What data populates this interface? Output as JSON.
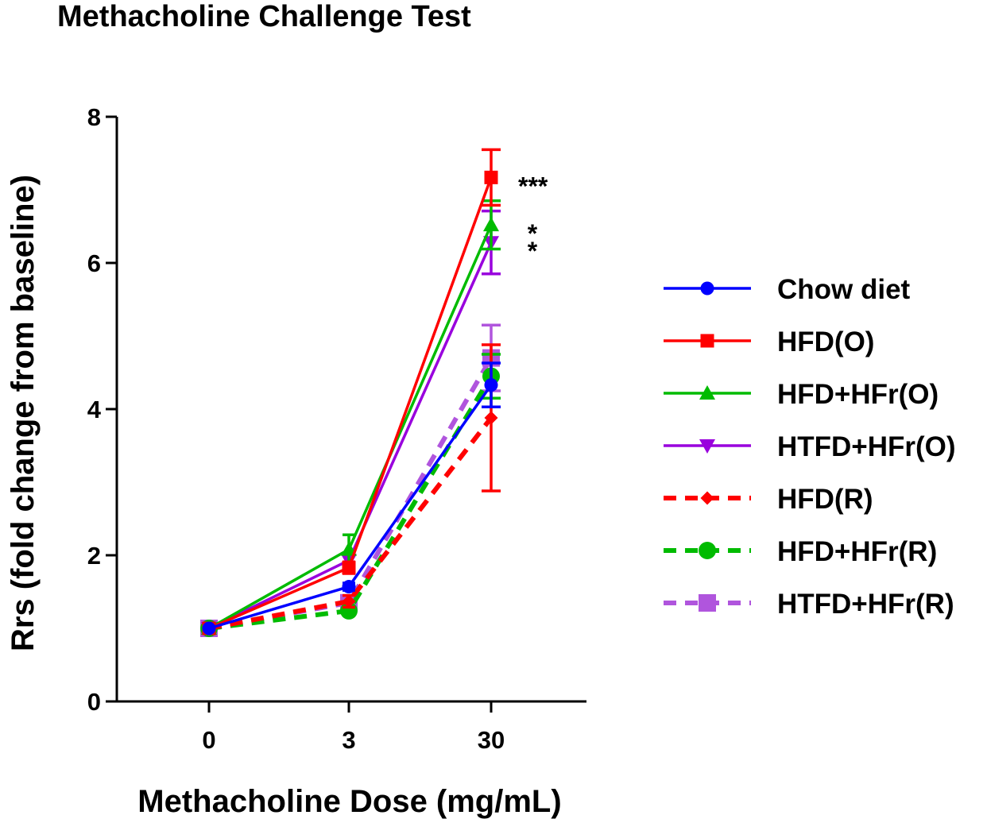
{
  "chart_data": {
    "type": "line",
    "title": "Methacholine Challenge Test",
    "xlabel": "Methacholine Dose (mg/mL)",
    "ylabel": "Rrs (fold change from baseline)",
    "categories": [
      "0",
      "3",
      "30"
    ],
    "ylim": [
      0,
      8
    ],
    "yticks": [
      0,
      2,
      4,
      6,
      8
    ],
    "legend_position": "right",
    "series": [
      {
        "name": "Chow diet",
        "values": [
          1.0,
          1.57,
          4.33
        ],
        "errors": [
          0,
          0.05,
          0.3
        ],
        "color": "#0000ff",
        "dash": false,
        "marker": "circle",
        "marker_size": "small"
      },
      {
        "name": "HFD(O)",
        "values": [
          1.0,
          1.83,
          7.17
        ],
        "errors": [
          0,
          0.08,
          0.38
        ],
        "color": "#ff0000",
        "dash": false,
        "marker": "square",
        "marker_size": "small"
      },
      {
        "name": "HFD+HFr(O)",
        "values": [
          1.0,
          2.08,
          6.52
        ],
        "errors": [
          0,
          0.2,
          0.33
        ],
        "color": "#00bb00",
        "dash": false,
        "marker": "triangle-up",
        "marker_size": "small"
      },
      {
        "name": "HTFD+HFr(O)",
        "values": [
          1.0,
          1.93,
          6.28
        ],
        "errors": [
          0,
          0.1,
          0.43
        ],
        "color": "#9900dd",
        "dash": false,
        "marker": "triangle-down",
        "marker_size": "small"
      },
      {
        "name": "HFD(R)",
        "values": [
          1.0,
          1.37,
          3.88
        ],
        "errors": [
          0,
          0.08,
          1.0
        ],
        "color": "#ff0000",
        "dash": true,
        "marker": "diamond",
        "marker_size": "small"
      },
      {
        "name": "HFD+HFr(R)",
        "values": [
          1.0,
          1.24,
          4.45
        ],
        "errors": [
          0,
          0.05,
          0.3
        ],
        "color": "#00bb00",
        "dash": true,
        "marker": "circle",
        "marker_size": "large"
      },
      {
        "name": "HTFD+HFr(R)",
        "values": [
          1.0,
          1.35,
          4.7
        ],
        "errors": [
          0,
          0.07,
          0.45
        ],
        "color": "#b055dd",
        "dash": true,
        "marker": "square",
        "marker_size": "large"
      }
    ],
    "annotations": [
      {
        "text": "***",
        "series": "HFD(O)"
      },
      {
        "text": "*",
        "series": "HFD+HFr(O)"
      },
      {
        "text": "*",
        "series": "HTFD+HFr(O)"
      }
    ]
  }
}
